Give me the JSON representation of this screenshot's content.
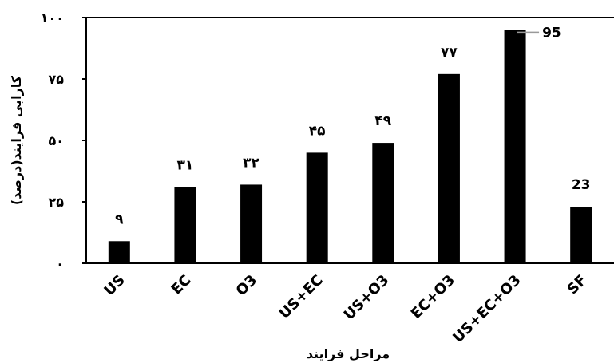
{
  "chart_data": {
    "type": "bar",
    "categories": [
      "US",
      "EC",
      "O3",
      "US+EC",
      "US+O3",
      "EC+O3",
      "US+EC+O3",
      "SF"
    ],
    "values": [
      9,
      31,
      32,
      45,
      49,
      77,
      95,
      23
    ],
    "data_labels": [
      "۹",
      "۳۱",
      "۳۲",
      "۴۵",
      "۴۹",
      "۷۷",
      "95",
      "23"
    ],
    "xlabel": "مراحل فرایند",
    "ylabel": "کارایی فرایند(درصد)",
    "ylim": [
      0,
      100
    ],
    "yticks": [
      0,
      25,
      50,
      75,
      100
    ],
    "ytick_labels": [
      "۰",
      "۲۵",
      "۵۰",
      "۷۵",
      "۱۰۰"
    ],
    "bar_color": "#000000",
    "grid": false,
    "legend": "none"
  }
}
